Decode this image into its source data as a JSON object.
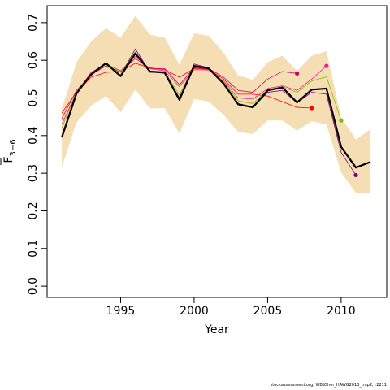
{
  "chart_data": {
    "type": "line",
    "xlabel": "Year",
    "ylabel_main": "F",
    "ylabel_sub": "3−6",
    "xlim": [
      1990.0,
      2013.1
    ],
    "ylim": [
      -0.03,
      0.745
    ],
    "x_ticks": [
      1995,
      2000,
      2005,
      2010
    ],
    "y_ticks": [
      0.0,
      0.1,
      0.2,
      0.3,
      0.4,
      0.5,
      0.6,
      0.7
    ],
    "y_tick_labels": [
      "0.0",
      "0.1",
      "0.2",
      "0.3",
      "0.4",
      "0.5",
      "0.6",
      "0.7"
    ],
    "band": {
      "color": "#f5deb3",
      "x": [
        1991,
        1992,
        1993,
        1994,
        1995,
        1996,
        1997,
        1998,
        1999,
        2000,
        2001,
        2002,
        2003,
        2004,
        2005,
        2006,
        2007,
        2008,
        2009,
        2010,
        2011,
        2012
      ],
      "upper": [
        0.47,
        0.595,
        0.65,
        0.685,
        0.66,
        0.718,
        0.668,
        0.66,
        0.588,
        0.672,
        0.665,
        0.62,
        0.56,
        0.548,
        0.595,
        0.612,
        0.572,
        0.612,
        0.624,
        0.448,
        0.39,
        0.417
      ],
      "lower": [
        0.316,
        0.435,
        0.48,
        0.505,
        0.462,
        0.522,
        0.472,
        0.473,
        0.405,
        0.497,
        0.49,
        0.455,
        0.41,
        0.404,
        0.44,
        0.44,
        0.413,
        0.438,
        0.43,
        0.302,
        0.248,
        0.248
      ]
    },
    "series": [
      {
        "color": "#ff0000",
        "width": 0.8,
        "x": [
          1991,
          1992,
          1993,
          1994,
          1995,
          1996,
          1997,
          1998,
          1999,
          2000,
          2001,
          2002,
          2003,
          2004,
          2005,
          2006,
          2007,
          2008
        ],
        "values": [
          0.46,
          0.515,
          0.555,
          0.568,
          0.57,
          0.592,
          0.58,
          0.575,
          0.555,
          0.578,
          0.576,
          0.55,
          0.51,
          0.51,
          0.505,
          0.49,
          0.475,
          0.473
        ],
        "end_marker": true
      },
      {
        "color": "#cc0066",
        "width": 0.8,
        "x": [
          1991,
          1992,
          1993,
          1994,
          1995,
          1996,
          1997,
          1998,
          1999,
          2000,
          2001,
          2002,
          2003,
          2004,
          2005,
          2006,
          2007
        ],
        "values": [
          0.445,
          0.52,
          0.562,
          0.585,
          0.568,
          0.605,
          0.578,
          0.578,
          0.535,
          0.58,
          0.578,
          0.555,
          0.52,
          0.515,
          0.55,
          0.57,
          0.565
        ],
        "end_marker": true
      },
      {
        "color": "#ff1493",
        "width": 0.8,
        "x": [
          1991,
          1992,
          1993,
          1994,
          1995,
          1996,
          1997,
          1998,
          1999,
          2000,
          2001,
          2002,
          2003,
          2004,
          2005,
          2006,
          2007,
          2008,
          2009
        ],
        "values": [
          0.43,
          0.515,
          0.568,
          0.59,
          0.572,
          0.61,
          0.578,
          0.572,
          0.53,
          0.575,
          0.574,
          0.545,
          0.5,
          0.497,
          0.525,
          0.532,
          0.52,
          0.55,
          0.585
        ],
        "end_marker": true
      },
      {
        "color": "#7fbf00",
        "width": 0.8,
        "x": [
          1991,
          1992,
          1993,
          1994,
          1995,
          1996,
          1997,
          1998,
          1999,
          2000,
          2001,
          2002,
          2003,
          2004,
          2005,
          2006,
          2007,
          2008,
          2009,
          2010
        ],
        "values": [
          0.42,
          0.515,
          0.565,
          0.593,
          0.568,
          0.622,
          0.572,
          0.57,
          0.508,
          0.585,
          0.578,
          0.543,
          0.492,
          0.485,
          0.522,
          0.528,
          0.515,
          0.545,
          0.556,
          0.44
        ],
        "end_marker": true
      },
      {
        "color": "#800080",
        "width": 0.8,
        "x": [
          1991,
          1992,
          1993,
          1994,
          1995,
          1996,
          1997,
          1998,
          1999,
          2000,
          2001,
          2002,
          2003,
          2004,
          2005,
          2006,
          2007,
          2008,
          2009,
          2010,
          2011
        ],
        "values": [
          0.4,
          0.515,
          0.56,
          0.59,
          0.56,
          0.63,
          0.568,
          0.568,
          0.5,
          0.59,
          0.58,
          0.54,
          0.485,
          0.475,
          0.515,
          0.52,
          0.487,
          0.515,
          0.51,
          0.355,
          0.295
        ],
        "end_marker": true
      },
      {
        "color": "#000000",
        "width": 2.2,
        "x": [
          1991,
          1992,
          1993,
          1994,
          1995,
          1996,
          1997,
          1998,
          1999,
          2000,
          2001,
          2002,
          2003,
          2004,
          2005,
          2006,
          2007,
          2008,
          2009,
          2010,
          2011,
          2012
        ],
        "values": [
          0.395,
          0.512,
          0.563,
          0.592,
          0.558,
          0.618,
          0.57,
          0.567,
          0.495,
          0.585,
          0.578,
          0.538,
          0.483,
          0.475,
          0.52,
          0.528,
          0.488,
          0.522,
          0.525,
          0.37,
          0.315,
          0.33
        ],
        "end_marker": false
      }
    ]
  },
  "footnote": "stockassessment.org, WBSSher_HAWG2013_tmp2, r2211"
}
